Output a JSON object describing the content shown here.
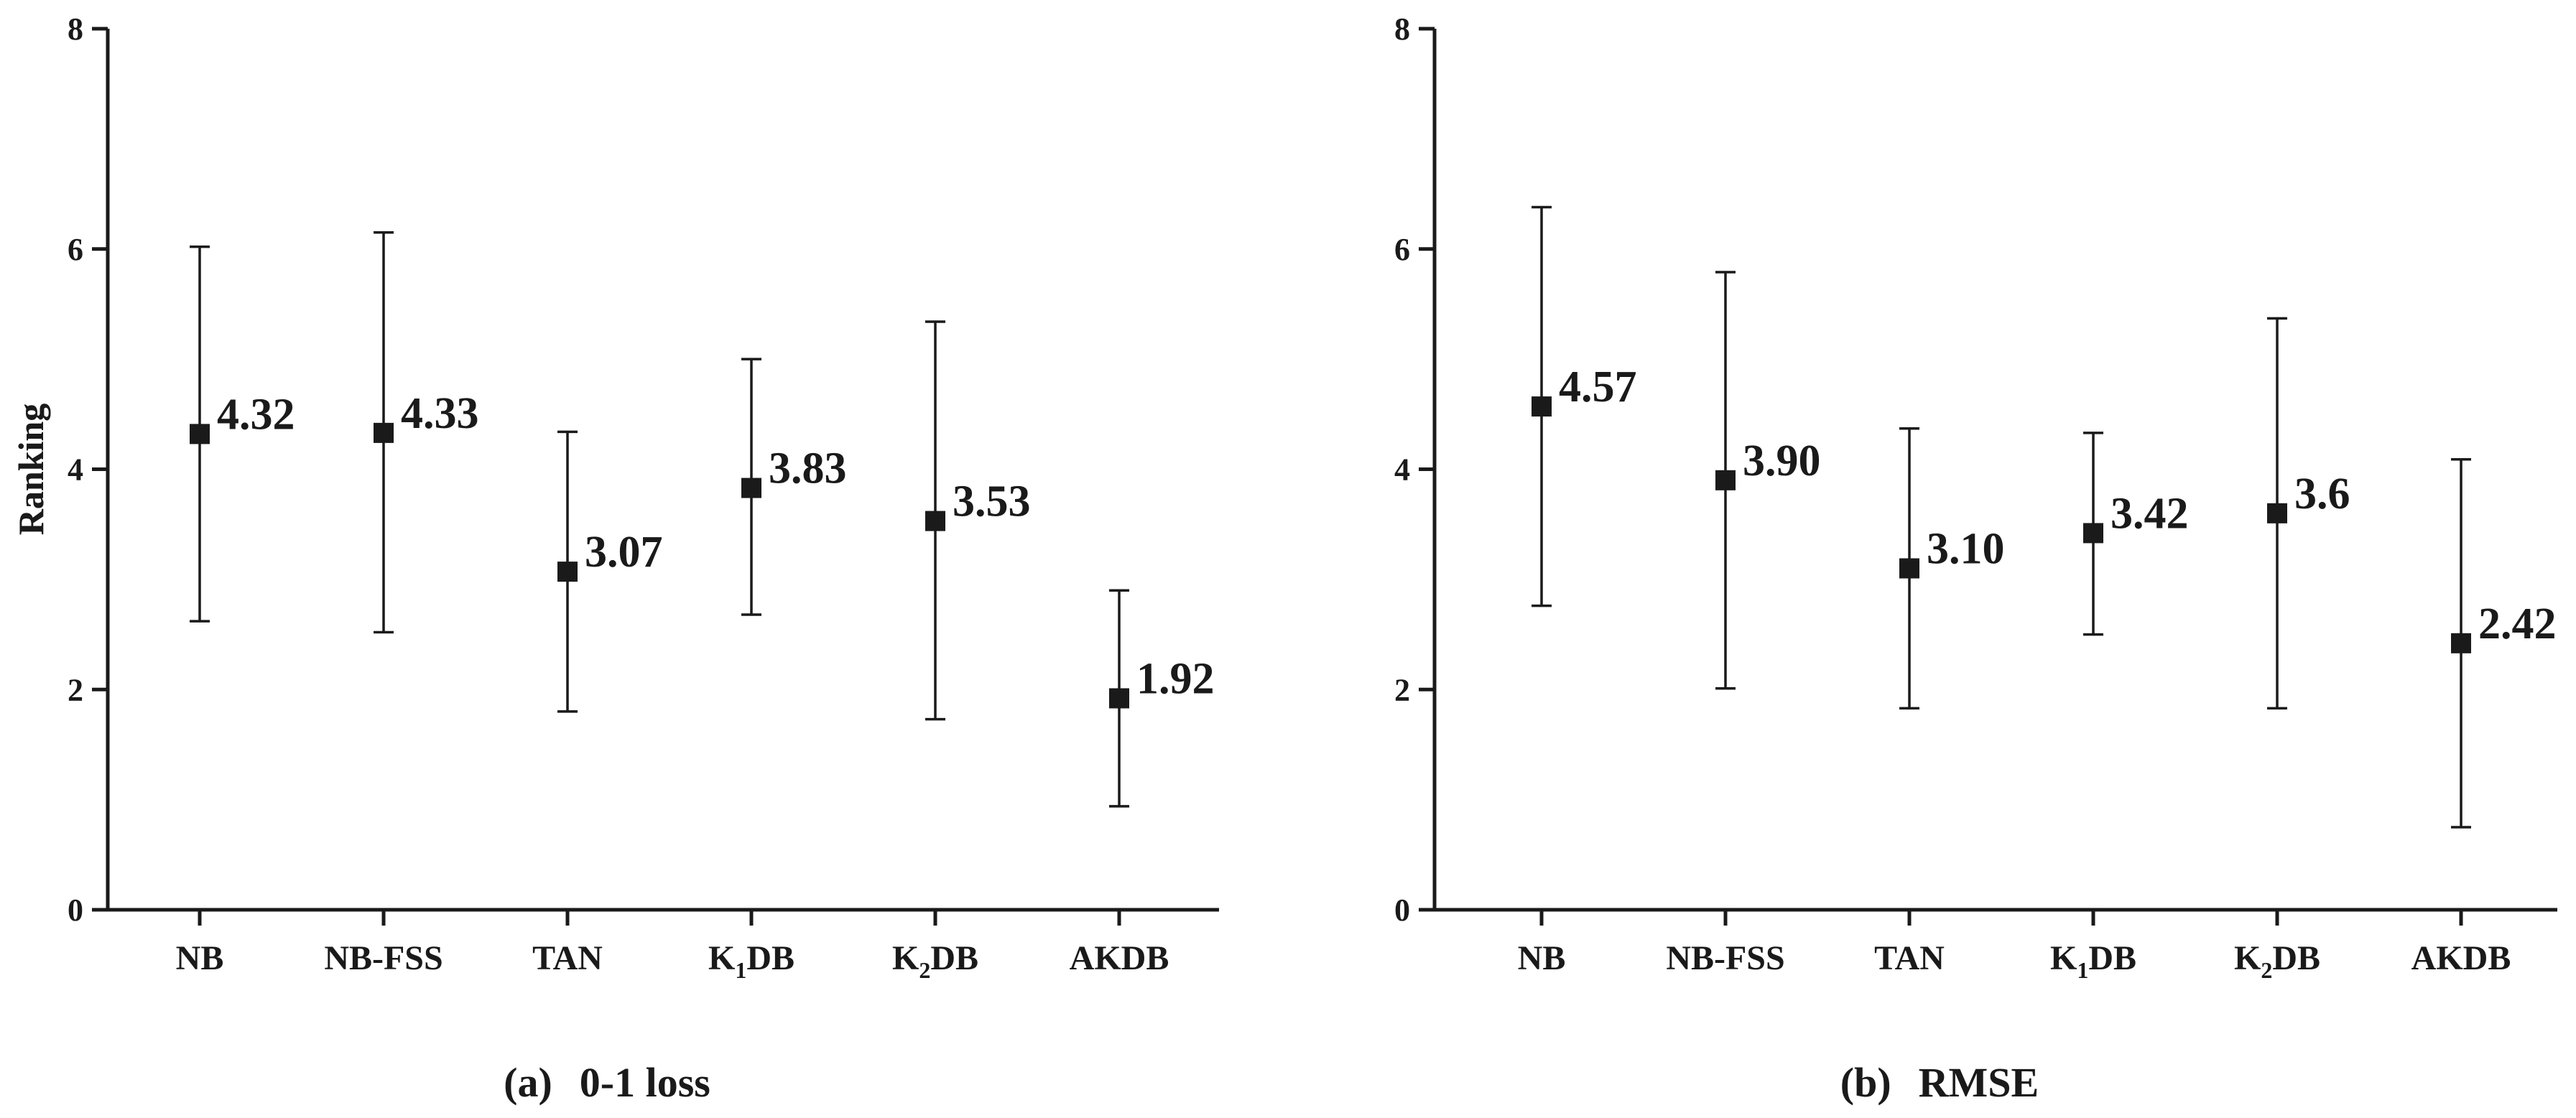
{
  "chart_data": [
    {
      "type": "scatter",
      "subplot_label": "(a)",
      "title": "0-1 loss",
      "xlabel": "",
      "ylabel": "Ranking",
      "ylim": [
        0,
        8
      ],
      "yticks": [
        "0",
        "2",
        "4",
        "6",
        "8"
      ],
      "categories": [
        {
          "prefix": "NB",
          "sub": "",
          "suffix": ""
        },
        {
          "prefix": "NB-FSS",
          "sub": "",
          "suffix": ""
        },
        {
          "prefix": "TAN",
          "sub": "",
          "suffix": ""
        },
        {
          "prefix": "K",
          "sub": "1",
          "suffix": "DB"
        },
        {
          "prefix": "K",
          "sub": "2",
          "suffix": "DB"
        },
        {
          "prefix": "AKDB",
          "sub": "",
          "suffix": ""
        }
      ],
      "values": [
        4.32,
        4.33,
        3.07,
        3.83,
        3.53,
        1.92
      ],
      "value_labels": [
        "4.32",
        "4.33",
        "3.07",
        "3.83",
        "3.53",
        "1.92"
      ],
      "error_low": [
        2.62,
        2.52,
        1.8,
        2.68,
        1.73,
        0.94
      ],
      "error_high": [
        6.02,
        6.15,
        4.34,
        5.0,
        5.34,
        2.9
      ],
      "grid": false,
      "color": "#1a1a1a"
    },
    {
      "type": "scatter",
      "subplot_label": "(b)",
      "title": "RMSE",
      "xlabel": "",
      "ylabel": "Ranking",
      "ylim": [
        0,
        8
      ],
      "yticks": [
        "0",
        "2",
        "4",
        "6",
        "8"
      ],
      "categories": [
        {
          "prefix": "NB",
          "sub": "",
          "suffix": ""
        },
        {
          "prefix": "NB-FSS",
          "sub": "",
          "suffix": ""
        },
        {
          "prefix": "TAN",
          "sub": "",
          "suffix": ""
        },
        {
          "prefix": "K",
          "sub": "1",
          "suffix": "DB"
        },
        {
          "prefix": "K",
          "sub": "2",
          "suffix": "DB"
        },
        {
          "prefix": "AKDB",
          "sub": "",
          "suffix": ""
        }
      ],
      "values": [
        4.57,
        3.9,
        3.1,
        3.42,
        3.6,
        2.42
      ],
      "value_labels": [
        "4.57",
        "3.90",
        "3.10",
        "3.42",
        "3.6",
        "2.42"
      ],
      "error_low": [
        2.76,
        2.01,
        1.83,
        2.5,
        1.83,
        0.75
      ],
      "error_high": [
        6.38,
        5.79,
        4.37,
        4.33,
        5.37,
        4.09
      ],
      "grid": false,
      "color": "#1a1a1a"
    }
  ]
}
